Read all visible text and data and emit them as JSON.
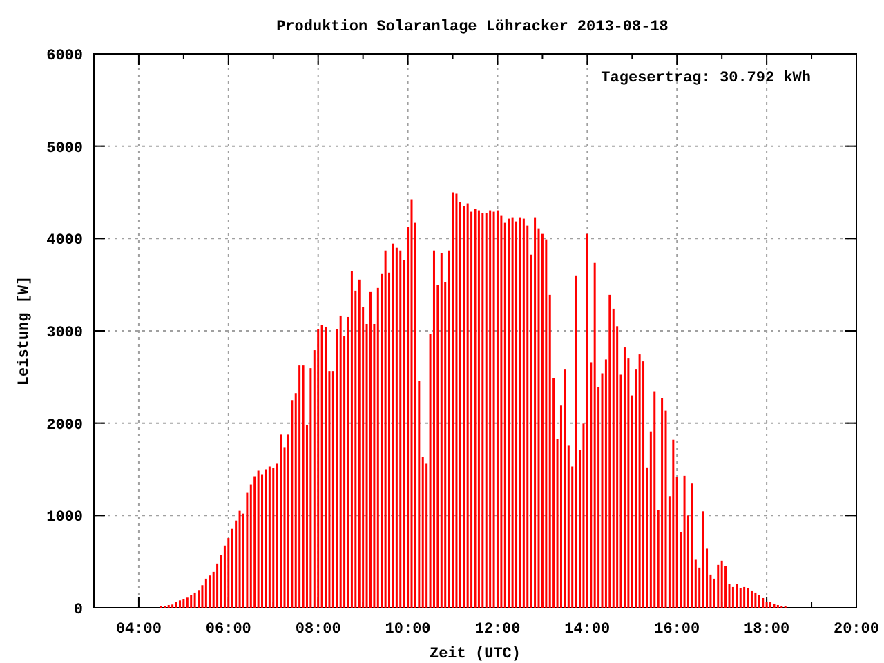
{
  "chart_data": {
    "type": "bar",
    "title": "Produktion Solaranlage Löhracker 2013-08-18",
    "xlabel": "Zeit (UTC)",
    "ylabel": "Leistung [W]",
    "annotations": [
      "Tagesertrag: 30.792 kWh"
    ],
    "x": [
      "2013-08-18T04:30",
      "2013-08-18T04:35",
      "2013-08-18T04:40",
      "2013-08-18T04:45",
      "2013-08-18T04:50",
      "2013-08-18T04:55",
      "2013-08-18T05:00",
      "2013-08-18T05:05",
      "2013-08-18T05:10",
      "2013-08-18T05:15",
      "2013-08-18T05:20",
      "2013-08-18T05:25",
      "2013-08-18T05:30",
      "2013-08-18T05:35",
      "2013-08-18T05:40",
      "2013-08-18T05:45",
      "2013-08-18T05:50",
      "2013-08-18T05:55",
      "2013-08-18T06:00",
      "2013-08-18T06:05",
      "2013-08-18T06:10",
      "2013-08-18T06:15",
      "2013-08-18T06:20",
      "2013-08-18T06:25",
      "2013-08-18T06:30",
      "2013-08-18T06:35",
      "2013-08-18T06:40",
      "2013-08-18T06:45",
      "2013-08-18T06:50",
      "2013-08-18T06:55",
      "2013-08-18T07:00",
      "2013-08-18T07:05",
      "2013-08-18T07:10",
      "2013-08-18T07:15",
      "2013-08-18T07:20",
      "2013-08-18T07:25",
      "2013-08-18T07:30",
      "2013-08-18T07:35",
      "2013-08-18T07:40",
      "2013-08-18T07:45",
      "2013-08-18T07:50",
      "2013-08-18T07:55",
      "2013-08-18T08:00",
      "2013-08-18T08:05",
      "2013-08-18T08:10",
      "2013-08-18T08:15",
      "2013-08-18T08:20",
      "2013-08-18T08:25",
      "2013-08-18T08:30",
      "2013-08-18T08:35",
      "2013-08-18T08:40",
      "2013-08-18T08:45",
      "2013-08-18T08:50",
      "2013-08-18T08:55",
      "2013-08-18T09:00",
      "2013-08-18T09:05",
      "2013-08-18T09:10",
      "2013-08-18T09:15",
      "2013-08-18T09:20",
      "2013-08-18T09:25",
      "2013-08-18T09:30",
      "2013-08-18T09:35",
      "2013-08-18T09:40",
      "2013-08-18T09:45",
      "2013-08-18T09:50",
      "2013-08-18T09:55",
      "2013-08-18T10:00",
      "2013-08-18T10:05",
      "2013-08-18T10:10",
      "2013-08-18T10:15",
      "2013-08-18T10:20",
      "2013-08-18T10:25",
      "2013-08-18T10:30",
      "2013-08-18T10:35",
      "2013-08-18T10:40",
      "2013-08-18T10:45",
      "2013-08-18T10:50",
      "2013-08-18T10:55",
      "2013-08-18T11:00",
      "2013-08-18T11:05",
      "2013-08-18T11:10",
      "2013-08-18T11:15",
      "2013-08-18T11:20",
      "2013-08-18T11:25",
      "2013-08-18T11:30",
      "2013-08-18T11:35",
      "2013-08-18T11:40",
      "2013-08-18T11:45",
      "2013-08-18T11:50",
      "2013-08-18T11:55",
      "2013-08-18T12:00",
      "2013-08-18T12:05",
      "2013-08-18T12:10",
      "2013-08-18T12:15",
      "2013-08-18T12:20",
      "2013-08-18T12:25",
      "2013-08-18T12:30",
      "2013-08-18T12:35",
      "2013-08-18T12:40",
      "2013-08-18T12:45",
      "2013-08-18T12:50",
      "2013-08-18T12:55",
      "2013-08-18T13:00",
      "2013-08-18T13:05",
      "2013-08-18T13:10",
      "2013-08-18T13:15",
      "2013-08-18T13:20",
      "2013-08-18T13:25",
      "2013-08-18T13:30",
      "2013-08-18T13:35",
      "2013-08-18T13:40",
      "2013-08-18T13:45",
      "2013-08-18T13:50",
      "2013-08-18T13:55",
      "2013-08-18T14:00",
      "2013-08-18T14:05",
      "2013-08-18T14:10",
      "2013-08-18T14:15",
      "2013-08-18T14:20",
      "2013-08-18T14:25",
      "2013-08-18T14:30",
      "2013-08-18T14:35",
      "2013-08-18T14:40",
      "2013-08-18T14:45",
      "2013-08-18T14:50",
      "2013-08-18T14:55",
      "2013-08-18T15:00",
      "2013-08-18T15:05",
      "2013-08-18T15:10",
      "2013-08-18T15:15",
      "2013-08-18T15:20",
      "2013-08-18T15:25",
      "2013-08-18T15:30",
      "2013-08-18T15:35",
      "2013-08-18T15:40",
      "2013-08-18T15:45",
      "2013-08-18T15:50",
      "2013-08-18T15:55",
      "2013-08-18T16:00",
      "2013-08-18T16:05",
      "2013-08-18T16:10",
      "2013-08-18T16:15",
      "2013-08-18T16:20",
      "2013-08-18T16:25",
      "2013-08-18T16:30",
      "2013-08-18T16:35",
      "2013-08-18T16:40",
      "2013-08-18T16:45",
      "2013-08-18T16:50",
      "2013-08-18T16:55",
      "2013-08-18T17:00",
      "2013-08-18T17:05",
      "2013-08-18T17:10",
      "2013-08-18T17:15",
      "2013-08-18T17:20",
      "2013-08-18T17:25",
      "2013-08-18T17:30",
      "2013-08-18T17:35",
      "2013-08-18T17:40",
      "2013-08-18T17:45",
      "2013-08-18T17:50",
      "2013-08-18T17:55",
      "2013-08-18T18:00",
      "2013-08-18T18:05",
      "2013-08-18T18:10",
      "2013-08-18T18:15",
      "2013-08-18T18:20",
      "2013-08-18T18:25"
    ],
    "series": [
      {
        "color": "#ff0000",
        "values": [
          15,
          15,
          30,
          35,
          65,
          80,
          95,
          110,
          135,
          165,
          185,
          245,
          315,
          350,
          390,
          480,
          570,
          675,
          755,
          855,
          945,
          1050,
          1020,
          1245,
          1335,
          1425,
          1485,
          1440,
          1500,
          1530,
          1515,
          1560,
          1875,
          1740,
          1875,
          2250,
          2325,
          2625,
          2625,
          1980,
          2595,
          2790,
          3015,
          3060,
          3045,
          2565,
          2565,
          3015,
          3165,
          2940,
          3150,
          3645,
          3435,
          3555,
          3255,
          3075,
          3420,
          3075,
          3465,
          3615,
          3870,
          3630,
          3945,
          3900,
          3870,
          3765,
          4125,
          4425,
          4170,
          2460,
          1635,
          1560,
          2970,
          3870,
          3495,
          3840,
          3525,
          3870,
          4500,
          4485,
          4395,
          4350,
          4380,
          4290,
          4320,
          4305,
          4275,
          4275,
          4305,
          4290,
          4305,
          4245,
          4170,
          4215,
          4230,
          4185,
          4230,
          4215,
          4140,
          3825,
          4230,
          4110,
          4050,
          3990,
          3390,
          2490,
          1830,
          2190,
          2580,
          1755,
          1530,
          3600,
          1710,
          1995,
          4050,
          2660,
          3735,
          2390,
          2540,
          2690,
          3390,
          3240,
          3050,
          2525,
          2820,
          2700,
          2300,
          2580,
          2745,
          2670,
          1520,
          1910,
          2345,
          1060,
          2270,
          2135,
          1210,
          1820,
          1420,
          820,
          1430,
          1000,
          1345,
          520,
          435,
          1045,
          640,
          360,
          315,
          465,
          510,
          450,
          255,
          225,
          255,
          210,
          225,
          210,
          180,
          165,
          135,
          105,
          60,
          60,
          45,
          30,
          15,
          15
        ]
      }
    ],
    "xlim": [
      "2013-08-18T03:00",
      "2013-08-18T20:00"
    ],
    "xticks": [
      {
        "value": "2013-08-18T03:00",
        "label": null
      },
      {
        "value": "2013-08-18T04:00",
        "label": "04:00"
      },
      {
        "value": "2013-08-18T05:00",
        "label": null
      },
      {
        "value": "2013-08-18T06:00",
        "label": "06:00"
      },
      {
        "value": "2013-08-18T07:00",
        "label": null
      },
      {
        "value": "2013-08-18T08:00",
        "label": "08:00"
      },
      {
        "value": "2013-08-18T09:00",
        "label": null
      },
      {
        "value": "2013-08-18T10:00",
        "label": "10:00"
      },
      {
        "value": "2013-08-18T11:00",
        "label": null
      },
      {
        "value": "2013-08-18T12:00",
        "label": "12:00"
      },
      {
        "value": "2013-08-18T13:00",
        "label": null
      },
      {
        "value": "2013-08-18T14:00",
        "label": "14:00"
      },
      {
        "value": "2013-08-18T15:00",
        "label": null
      },
      {
        "value": "2013-08-18T16:00",
        "label": "16:00"
      },
      {
        "value": "2013-08-18T17:00",
        "label": null
      },
      {
        "value": "2013-08-18T18:00",
        "label": "18:00"
      },
      {
        "value": "2013-08-18T19:00",
        "label": null
      },
      {
        "value": "2013-08-18T20:00",
        "label": "20:00"
      }
    ],
    "ylim": [
      0,
      6000
    ],
    "yticks": [
      0,
      1000,
      2000,
      3000,
      4000,
      5000,
      6000
    ],
    "grid": true
  }
}
